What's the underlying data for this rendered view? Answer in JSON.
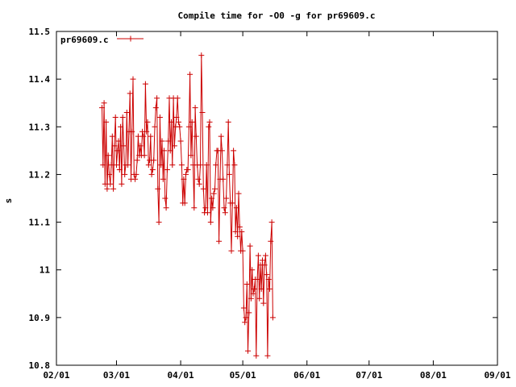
{
  "chart_data": {
    "type": "line",
    "title": "Compile time for -O0 -g for pr69609.c",
    "xlabel": "",
    "ylabel": "s",
    "xlim": [
      "2016-02-01",
      "2016-09-01"
    ],
    "ylim": [
      10.8,
      11.5
    ],
    "x_tick_labels": [
      "02/01",
      "03/01",
      "04/01",
      "05/01",
      "06/01",
      "07/01",
      "08/01",
      "09/01"
    ],
    "y_tick_labels": [
      "10.8",
      "10.9",
      "11",
      "11.1",
      "11.2",
      "11.3",
      "11.4",
      "11.5"
    ],
    "y_ticks": [
      10.8,
      10.9,
      11.0,
      11.1,
      11.2,
      11.3,
      11.4,
      11.5
    ],
    "legend_position": "top-left",
    "grid": false,
    "series": [
      {
        "name": "pr69609.c",
        "color": "#cc0000",
        "marker": "plus",
        "start_date": "2016-02-23",
        "day_step": 0.5,
        "values": [
          11.34,
          11.22,
          11.35,
          11.18,
          11.31,
          11.17,
          11.24,
          11.2,
          11.18,
          11.22,
          11.28,
          11.17,
          11.26,
          11.32,
          11.22,
          11.25,
          11.27,
          11.21,
          11.3,
          11.18,
          11.32,
          11.26,
          11.2,
          11.22,
          11.33,
          11.22,
          11.29,
          11.37,
          11.19,
          11.29,
          11.4,
          11.2,
          11.19,
          11.2,
          11.23,
          11.28,
          11.24,
          11.26,
          11.24,
          11.29,
          11.28,
          11.24,
          11.39,
          11.29,
          11.31,
          11.22,
          11.23,
          11.28,
          11.2,
          11.21,
          11.23,
          11.3,
          11.34,
          11.36,
          11.17,
          11.1,
          11.32,
          11.22,
          11.27,
          11.19,
          11.25,
          11.15,
          11.13,
          11.21,
          11.27,
          11.36,
          11.25,
          11.31,
          11.22,
          11.36,
          11.26,
          11.3,
          11.32,
          11.36,
          11.31,
          11.3,
          11.27,
          11.22,
          11.14,
          11.19,
          11.14,
          11.2,
          11.21,
          11.21,
          11.3,
          11.41,
          11.24,
          11.31,
          11.22,
          11.13,
          11.34,
          11.28,
          11.22,
          11.19,
          11.18,
          11.22,
          11.45,
          11.33,
          11.17,
          11.12,
          11.13,
          11.22,
          11.12,
          11.3,
          11.31,
          11.1,
          11.15,
          11.13,
          11.16,
          11.17,
          11.22,
          11.25,
          11.25,
          11.06,
          11.19,
          11.28,
          11.25,
          11.19,
          11.13,
          11.12,
          11.15,
          11.22,
          11.31,
          11.2,
          11.14,
          11.04,
          11.14,
          11.25,
          11.22,
          11.08,
          11.13,
          11.07,
          11.16,
          11.09,
          11.04,
          11.08,
          11.04,
          10.92,
          10.89,
          10.9,
          10.97,
          10.83,
          10.91,
          11.05,
          10.94,
          11.0,
          10.95,
          10.96,
          10.98,
          10.82,
          10.98,
          11.03,
          10.94,
          11.01,
          10.96,
          11.02,
          10.93,
          11.01,
          11.03,
          10.99,
          10.82,
          10.98,
          10.96,
          11.06,
          11.1,
          10.9
        ]
      }
    ]
  }
}
